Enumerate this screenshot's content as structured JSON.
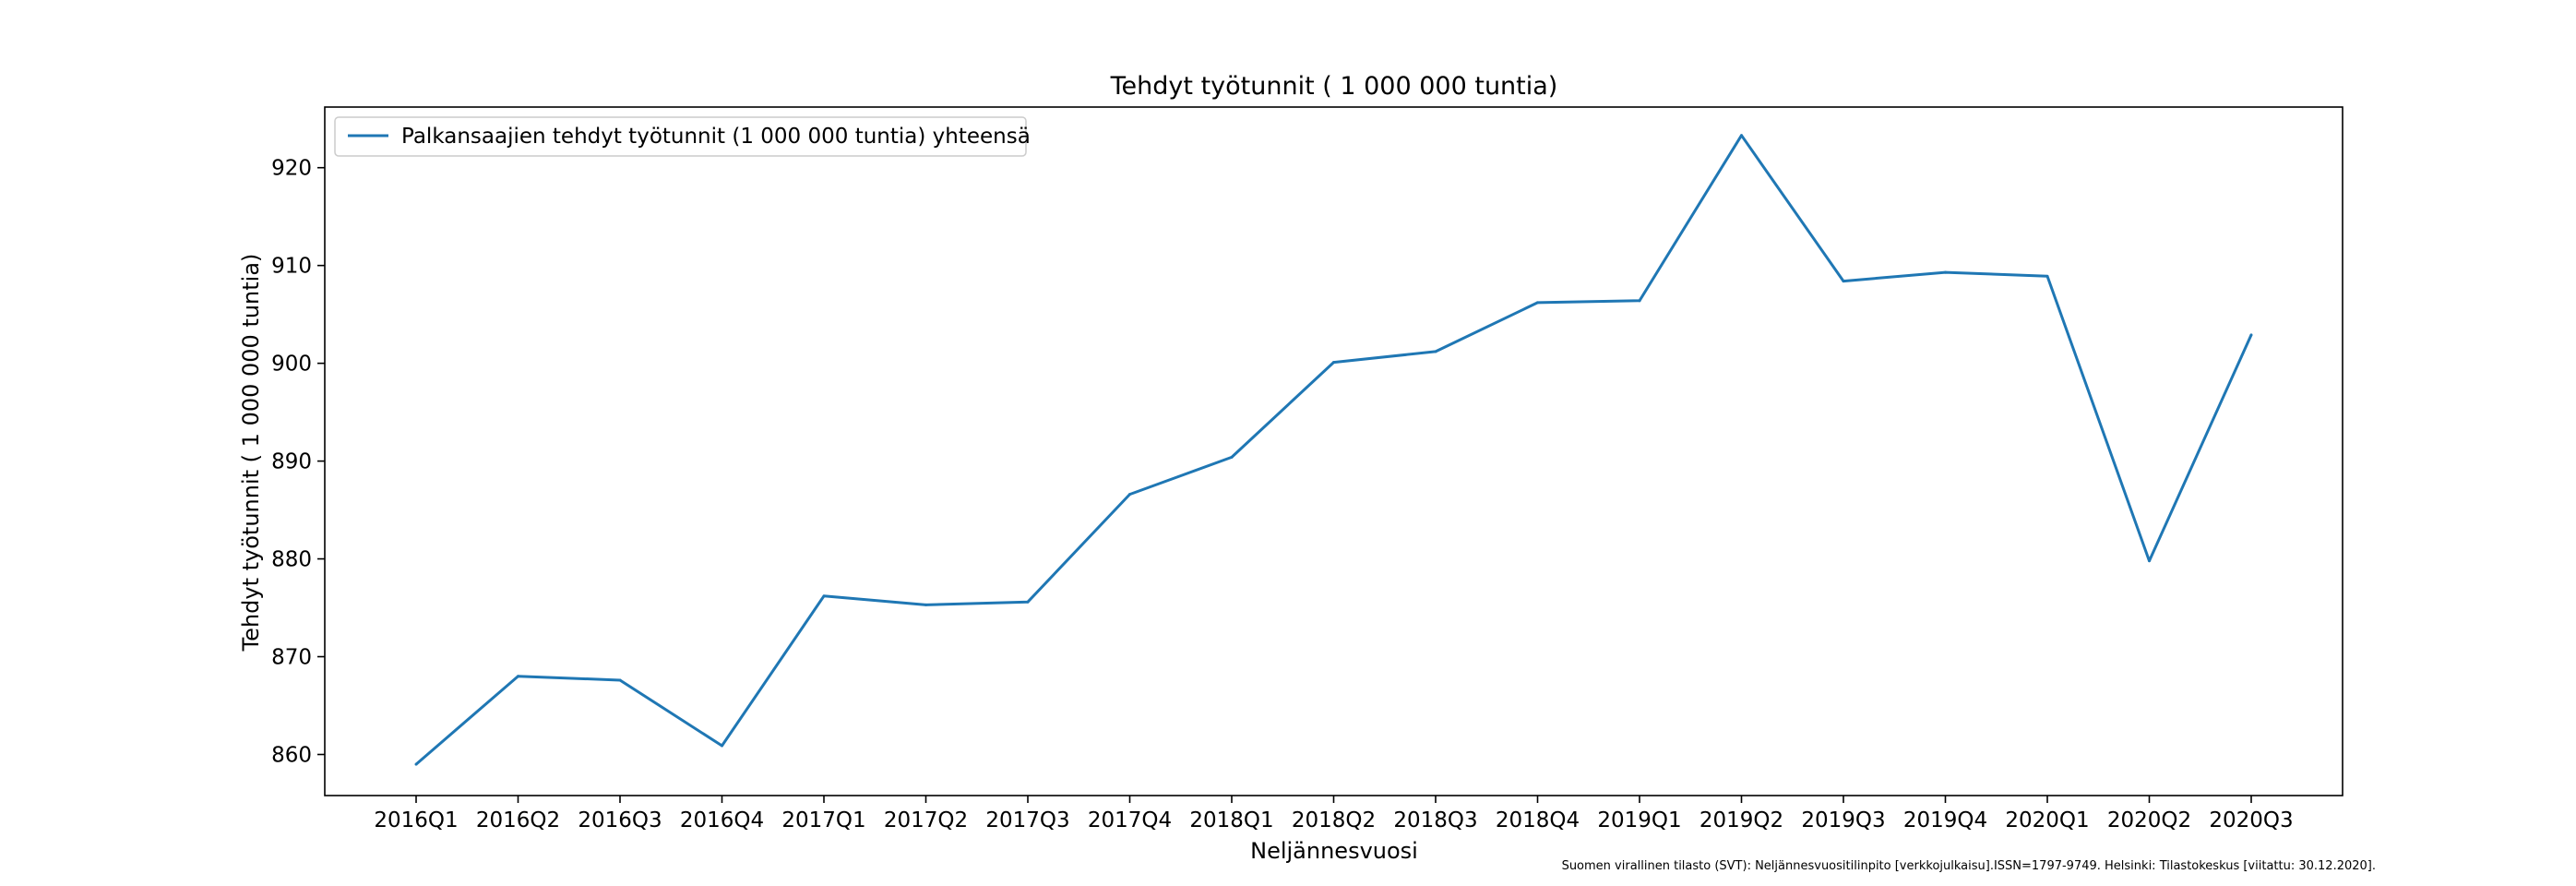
{
  "chart_data": {
    "type": "line",
    "title": "Tehdyt työtunnit ( 1 000 000 tuntia)",
    "xlabel": "Neljännesvuosi",
    "ylabel": "Tehdyt työtunnit ( 1 000 000 tuntia)",
    "categories": [
      "2016Q1",
      "2016Q2",
      "2016Q3",
      "2016Q4",
      "2017Q1",
      "2017Q2",
      "2017Q3",
      "2017Q4",
      "2018Q1",
      "2018Q2",
      "2018Q3",
      "2018Q4",
      "2019Q1",
      "2019Q2",
      "2019Q3",
      "2019Q4",
      "2020Q1",
      "2020Q2",
      "2020Q3"
    ],
    "series": [
      {
        "name": "Palkansaajien tehdyt työtunnit (1 000 000 tuntia) yhteensä",
        "color": "#1f77b4",
        "values": [
          859.0,
          868.0,
          867.6,
          860.9,
          876.2,
          875.3,
          875.6,
          886.6,
          890.4,
          900.1,
          901.2,
          906.2,
          906.4,
          923.3,
          908.4,
          909.3,
          908.9,
          879.8,
          902.9
        ]
      }
    ],
    "ylim": [
      855.8,
      926.2
    ],
    "yticks": [
      860,
      870,
      880,
      890,
      900,
      910,
      920
    ],
    "grid": false,
    "legend_position": "top-left"
  },
  "source_note": "Suomen virallinen tilasto (SVT): Neljännesvuositilinpito [verkkojulkaisu].ISSN=1797-9749. Helsinki: Tilastokeskus [viitattu: 30.12.2020]."
}
